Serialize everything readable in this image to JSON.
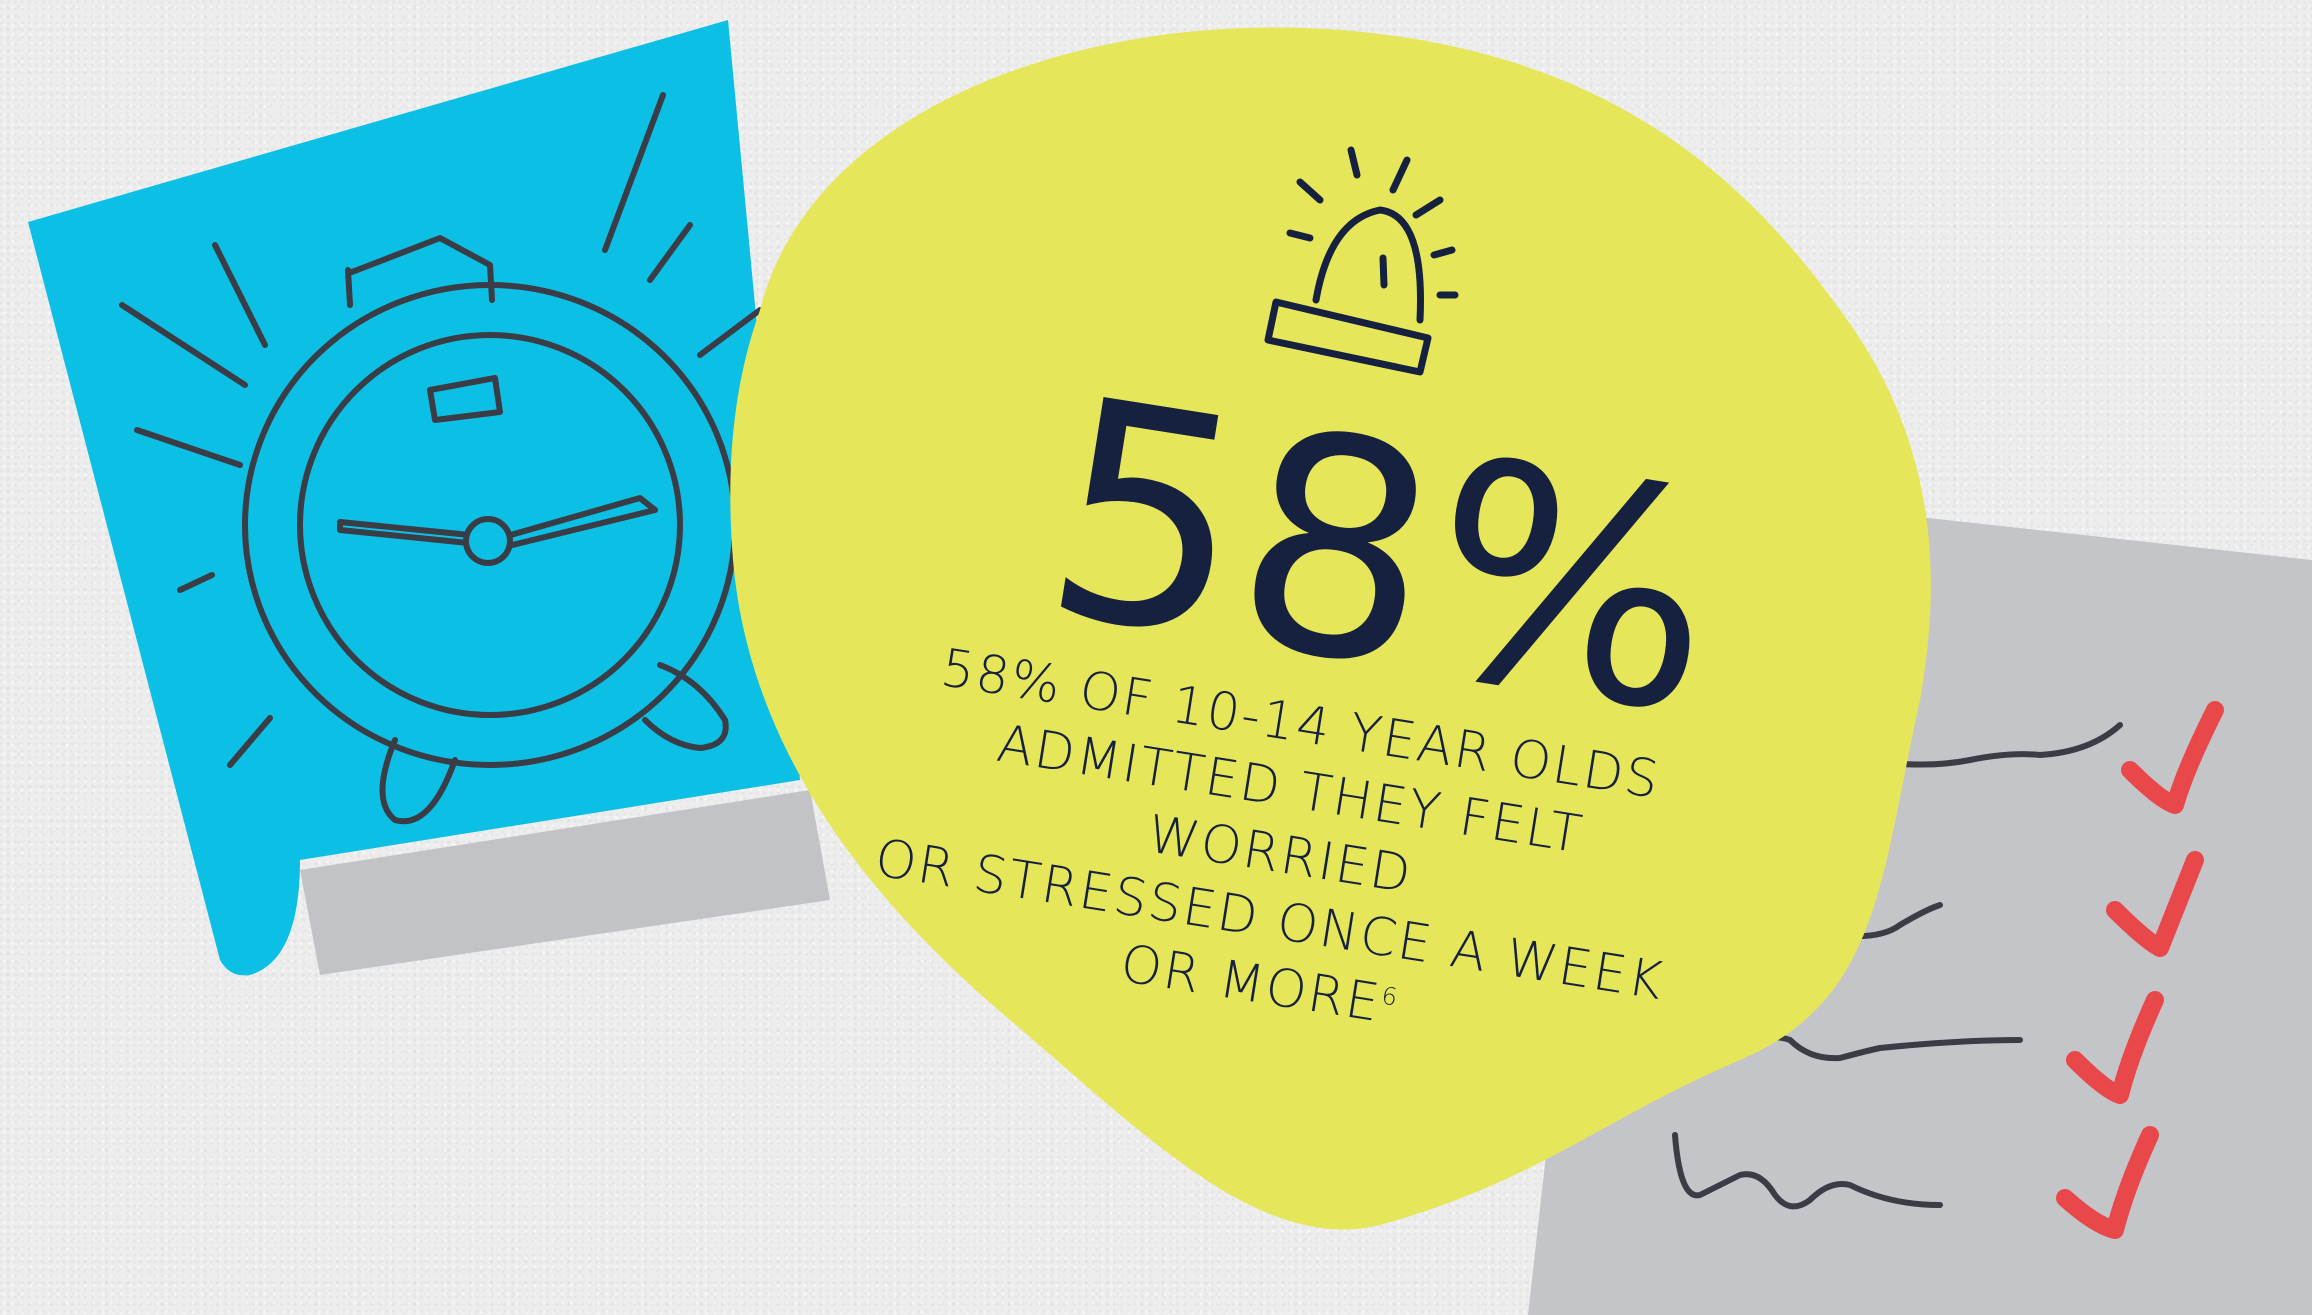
{
  "stat": {
    "value": "58%",
    "lines": [
      "58% OF 10-14 YEAR OLDS",
      "ADMITTED THEY FELT WORRIED",
      "OR STRESSED ONCE A WEEK",
      "OR MORE"
    ],
    "footnote": "6"
  },
  "icons": {
    "left_card": "alarm-clock-icon",
    "top_center": "siren-alarm-light-icon",
    "right_card": "checklist-icon"
  },
  "colors": {
    "background": "#ededed",
    "blue_card": "#0cbfe4",
    "yellow_blob": "#e6e65a",
    "grey_card": "#c4c5c8",
    "navy_text": "#16213f",
    "outline": "#3a3d45",
    "check_red": "#e8484a"
  }
}
